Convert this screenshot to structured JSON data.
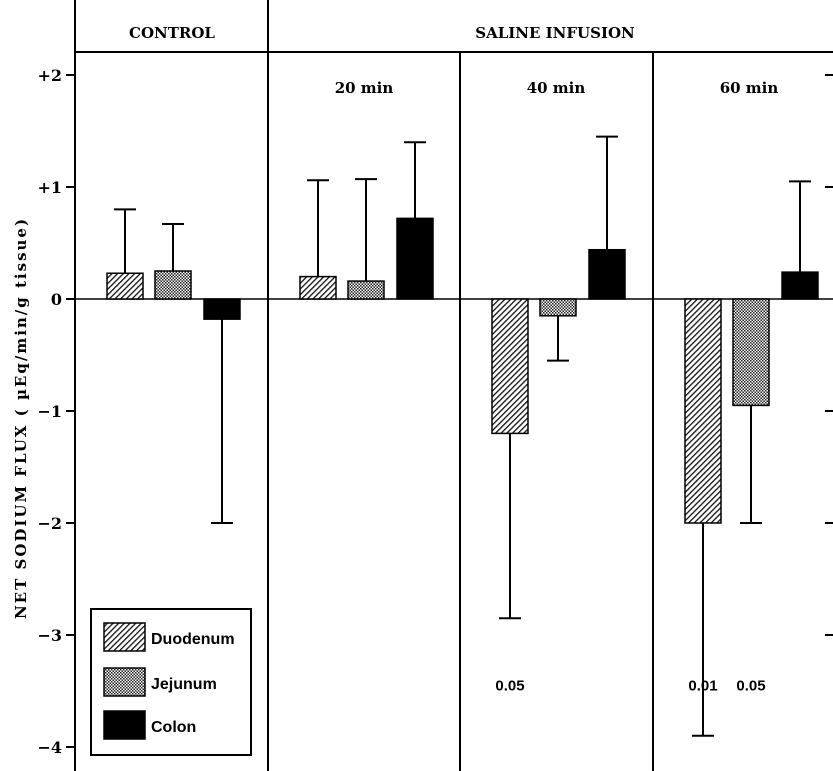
{
  "chart_data": {
    "type": "bar",
    "ylabel": "NET SODIUM FLUX ( µEq/min/g tissue)",
    "ylim": [
      -4,
      2
    ],
    "yticks": [
      {
        "value": 2,
        "label": "+2"
      },
      {
        "value": 1,
        "label": "+1"
      },
      {
        "value": 0,
        "label": "0"
      },
      {
        "value": -1,
        "label": "−1"
      },
      {
        "value": -2,
        "label": "−2"
      },
      {
        "value": -3,
        "label": "−3"
      },
      {
        "value": -4,
        "label": "−4"
      }
    ],
    "header": {
      "control": "CONTROL",
      "saline": "SALINE INFUSION"
    },
    "series": [
      {
        "name": "Duodenum",
        "pattern": "hatch"
      },
      {
        "name": "Jejunum",
        "pattern": "dots"
      },
      {
        "name": "Colon",
        "pattern": "solid"
      }
    ],
    "groups": [
      {
        "label": "",
        "bars": [
          {
            "series": "Duodenum",
            "value": 0.23,
            "err_top": 0.8,
            "err_bottom": null
          },
          {
            "series": "Jejunum",
            "value": 0.25,
            "err_top": 0.67,
            "err_bottom": null
          },
          {
            "series": "Colon",
            "value": -0.18,
            "err_top": null,
            "err_bottom": -2.0
          }
        ],
        "pvalues": []
      },
      {
        "label": "20 min",
        "bars": [
          {
            "series": "Duodenum",
            "value": 0.2,
            "err_top": 1.06,
            "err_bottom": null
          },
          {
            "series": "Jejunum",
            "value": 0.16,
            "err_top": 1.07,
            "err_bottom": null
          },
          {
            "series": "Colon",
            "value": 0.72,
            "err_top": 1.4,
            "err_bottom": null
          }
        ],
        "pvalues": []
      },
      {
        "label": "40 min",
        "bars": [
          {
            "series": "Duodenum",
            "value": -1.2,
            "err_top": null,
            "err_bottom": -2.85
          },
          {
            "series": "Jejunum",
            "value": -0.15,
            "err_top": null,
            "err_bottom": -0.55
          },
          {
            "series": "Colon",
            "value": 0.44,
            "err_top": 1.45,
            "err_bottom": null
          }
        ],
        "pvalues": [
          {
            "series": "Duodenum",
            "text": "0.05"
          }
        ]
      },
      {
        "label": "60 min",
        "bars": [
          {
            "series": "Duodenum",
            "value": -2.0,
            "err_top": null,
            "err_bottom": -3.9
          },
          {
            "series": "Jejunum",
            "value": -0.95,
            "err_top": null,
            "err_bottom": -2.0
          },
          {
            "series": "Colon",
            "value": 0.24,
            "err_top": 1.05,
            "err_bottom": null
          }
        ],
        "pvalues": [
          {
            "series": "Duodenum",
            "text": "0.01"
          },
          {
            "series": "Jejunum",
            "text": "0.05"
          }
        ]
      }
    ],
    "legend": {
      "position": "bottom-left"
    },
    "pvalue_level": -3.45
  }
}
